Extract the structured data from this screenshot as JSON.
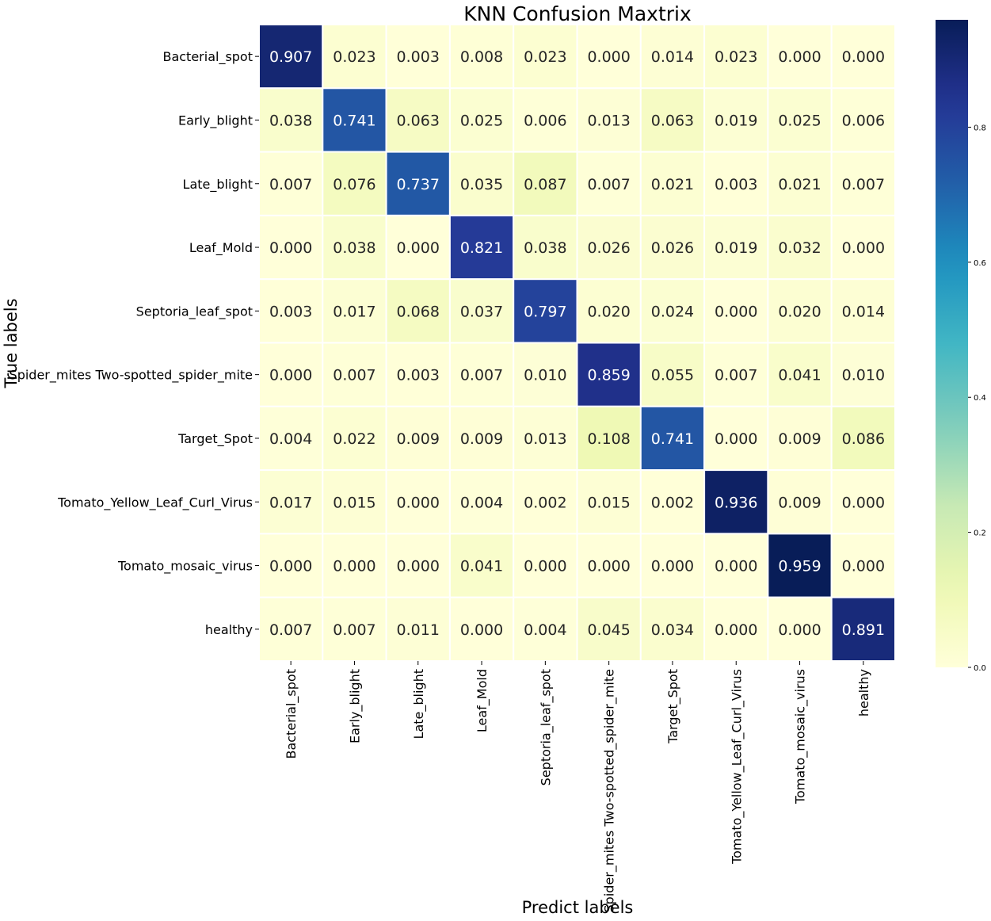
{
  "chart_data": {
    "type": "heatmap",
    "title": "KNN Confusion Maxtrix",
    "xlabel": "Predict labels",
    "ylabel": "True labels",
    "x_categories": [
      "Bacterial_spot",
      "Early_blight",
      "Late_blight",
      "Leaf_Mold",
      "Septoria_leaf_spot",
      "Spider_mites Two-spotted_spider_mite",
      "Target_Spot",
      "Tomato_Yellow_Leaf_Curl_Virus",
      "Tomato_mosaic_virus",
      "healthy"
    ],
    "y_categories": [
      "Bacterial_spot",
      "Early_blight",
      "Late_blight",
      "Leaf_Mold",
      "Septoria_leaf_spot",
      "Spider_mites Two-spotted_spider_mite",
      "Target_Spot",
      "Tomato_Yellow_Leaf_Curl_Virus",
      "Tomato_mosaic_virus",
      "healthy"
    ],
    "values": [
      [
        0.907,
        0.023,
        0.003,
        0.008,
        0.023,
        0.0,
        0.014,
        0.023,
        0.0,
        0.0
      ],
      [
        0.038,
        0.741,
        0.063,
        0.025,
        0.006,
        0.013,
        0.063,
        0.019,
        0.025,
        0.006
      ],
      [
        0.007,
        0.076,
        0.737,
        0.035,
        0.087,
        0.007,
        0.021,
        0.003,
        0.021,
        0.007
      ],
      [
        0.0,
        0.038,
        0.0,
        0.821,
        0.038,
        0.026,
        0.026,
        0.019,
        0.032,
        0.0
      ],
      [
        0.003,
        0.017,
        0.068,
        0.037,
        0.797,
        0.02,
        0.024,
        0.0,
        0.02,
        0.014
      ],
      [
        0.0,
        0.007,
        0.003,
        0.007,
        0.01,
        0.859,
        0.055,
        0.007,
        0.041,
        0.01
      ],
      [
        0.004,
        0.022,
        0.009,
        0.009,
        0.013,
        0.108,
        0.741,
        0.0,
        0.009,
        0.086
      ],
      [
        0.017,
        0.015,
        0.0,
        0.004,
        0.002,
        0.015,
        0.002,
        0.936,
        0.009,
        0.0
      ],
      [
        0.0,
        0.0,
        0.0,
        0.041,
        0.0,
        0.0,
        0.0,
        0.0,
        0.959,
        0.0
      ],
      [
        0.007,
        0.007,
        0.011,
        0.0,
        0.004,
        0.045,
        0.034,
        0.0,
        0.0,
        0.891
      ]
    ],
    "value_format": "0.000",
    "colormap": "YlGnBu",
    "colorbar": {
      "range": [
        0,
        0.959
      ],
      "ticks": [
        0.0,
        0.2,
        0.4,
        0.6,
        0.8
      ],
      "tick_labels": [
        "0.0",
        "0.2",
        "0.4",
        "0.6",
        "0.8"
      ]
    },
    "cell_border_color": "#ffffff",
    "dark_text_color": "#262626",
    "light_text_color": "#ffffff"
  }
}
